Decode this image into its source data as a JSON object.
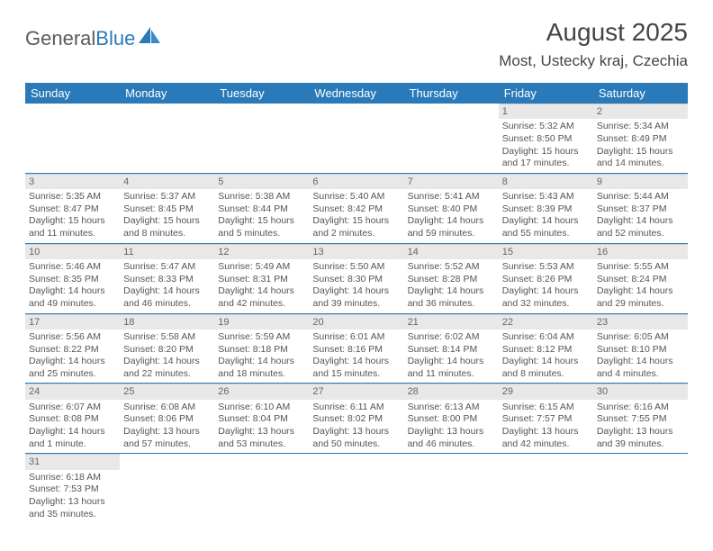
{
  "logo": {
    "text1": "General",
    "text2": "Blue"
  },
  "title": "August 2025",
  "location": "Most, Ustecky kraj, Czechia",
  "colors": {
    "header_bg": "#2a7ab9",
    "header_text": "#ffffff",
    "cell_text": "#555555",
    "daynum_bg": "#e8e8e8",
    "row_border": "#2a7ab9"
  },
  "weekdays": [
    "Sunday",
    "Monday",
    "Tuesday",
    "Wednesday",
    "Thursday",
    "Friday",
    "Saturday"
  ],
  "weeks": [
    [
      null,
      null,
      null,
      null,
      null,
      {
        "n": "1",
        "sr": "Sunrise: 5:32 AM",
        "ss": "Sunset: 8:50 PM",
        "dl": "Daylight: 15 hours and 17 minutes."
      },
      {
        "n": "2",
        "sr": "Sunrise: 5:34 AM",
        "ss": "Sunset: 8:49 PM",
        "dl": "Daylight: 15 hours and 14 minutes."
      }
    ],
    [
      {
        "n": "3",
        "sr": "Sunrise: 5:35 AM",
        "ss": "Sunset: 8:47 PM",
        "dl": "Daylight: 15 hours and 11 minutes."
      },
      {
        "n": "4",
        "sr": "Sunrise: 5:37 AM",
        "ss": "Sunset: 8:45 PM",
        "dl": "Daylight: 15 hours and 8 minutes."
      },
      {
        "n": "5",
        "sr": "Sunrise: 5:38 AM",
        "ss": "Sunset: 8:44 PM",
        "dl": "Daylight: 15 hours and 5 minutes."
      },
      {
        "n": "6",
        "sr": "Sunrise: 5:40 AM",
        "ss": "Sunset: 8:42 PM",
        "dl": "Daylight: 15 hours and 2 minutes."
      },
      {
        "n": "7",
        "sr": "Sunrise: 5:41 AM",
        "ss": "Sunset: 8:40 PM",
        "dl": "Daylight: 14 hours and 59 minutes."
      },
      {
        "n": "8",
        "sr": "Sunrise: 5:43 AM",
        "ss": "Sunset: 8:39 PM",
        "dl": "Daylight: 14 hours and 55 minutes."
      },
      {
        "n": "9",
        "sr": "Sunrise: 5:44 AM",
        "ss": "Sunset: 8:37 PM",
        "dl": "Daylight: 14 hours and 52 minutes."
      }
    ],
    [
      {
        "n": "10",
        "sr": "Sunrise: 5:46 AM",
        "ss": "Sunset: 8:35 PM",
        "dl": "Daylight: 14 hours and 49 minutes."
      },
      {
        "n": "11",
        "sr": "Sunrise: 5:47 AM",
        "ss": "Sunset: 8:33 PM",
        "dl": "Daylight: 14 hours and 46 minutes."
      },
      {
        "n": "12",
        "sr": "Sunrise: 5:49 AM",
        "ss": "Sunset: 8:31 PM",
        "dl": "Daylight: 14 hours and 42 minutes."
      },
      {
        "n": "13",
        "sr": "Sunrise: 5:50 AM",
        "ss": "Sunset: 8:30 PM",
        "dl": "Daylight: 14 hours and 39 minutes."
      },
      {
        "n": "14",
        "sr": "Sunrise: 5:52 AM",
        "ss": "Sunset: 8:28 PM",
        "dl": "Daylight: 14 hours and 36 minutes."
      },
      {
        "n": "15",
        "sr": "Sunrise: 5:53 AM",
        "ss": "Sunset: 8:26 PM",
        "dl": "Daylight: 14 hours and 32 minutes."
      },
      {
        "n": "16",
        "sr": "Sunrise: 5:55 AM",
        "ss": "Sunset: 8:24 PM",
        "dl": "Daylight: 14 hours and 29 minutes."
      }
    ],
    [
      {
        "n": "17",
        "sr": "Sunrise: 5:56 AM",
        "ss": "Sunset: 8:22 PM",
        "dl": "Daylight: 14 hours and 25 minutes."
      },
      {
        "n": "18",
        "sr": "Sunrise: 5:58 AM",
        "ss": "Sunset: 8:20 PM",
        "dl": "Daylight: 14 hours and 22 minutes."
      },
      {
        "n": "19",
        "sr": "Sunrise: 5:59 AM",
        "ss": "Sunset: 8:18 PM",
        "dl": "Daylight: 14 hours and 18 minutes."
      },
      {
        "n": "20",
        "sr": "Sunrise: 6:01 AM",
        "ss": "Sunset: 8:16 PM",
        "dl": "Daylight: 14 hours and 15 minutes."
      },
      {
        "n": "21",
        "sr": "Sunrise: 6:02 AM",
        "ss": "Sunset: 8:14 PM",
        "dl": "Daylight: 14 hours and 11 minutes."
      },
      {
        "n": "22",
        "sr": "Sunrise: 6:04 AM",
        "ss": "Sunset: 8:12 PM",
        "dl": "Daylight: 14 hours and 8 minutes."
      },
      {
        "n": "23",
        "sr": "Sunrise: 6:05 AM",
        "ss": "Sunset: 8:10 PM",
        "dl": "Daylight: 14 hours and 4 minutes."
      }
    ],
    [
      {
        "n": "24",
        "sr": "Sunrise: 6:07 AM",
        "ss": "Sunset: 8:08 PM",
        "dl": "Daylight: 14 hours and 1 minute."
      },
      {
        "n": "25",
        "sr": "Sunrise: 6:08 AM",
        "ss": "Sunset: 8:06 PM",
        "dl": "Daylight: 13 hours and 57 minutes."
      },
      {
        "n": "26",
        "sr": "Sunrise: 6:10 AM",
        "ss": "Sunset: 8:04 PM",
        "dl": "Daylight: 13 hours and 53 minutes."
      },
      {
        "n": "27",
        "sr": "Sunrise: 6:11 AM",
        "ss": "Sunset: 8:02 PM",
        "dl": "Daylight: 13 hours and 50 minutes."
      },
      {
        "n": "28",
        "sr": "Sunrise: 6:13 AM",
        "ss": "Sunset: 8:00 PM",
        "dl": "Daylight: 13 hours and 46 minutes."
      },
      {
        "n": "29",
        "sr": "Sunrise: 6:15 AM",
        "ss": "Sunset: 7:57 PM",
        "dl": "Daylight: 13 hours and 42 minutes."
      },
      {
        "n": "30",
        "sr": "Sunrise: 6:16 AM",
        "ss": "Sunset: 7:55 PM",
        "dl": "Daylight: 13 hours and 39 minutes."
      }
    ],
    [
      {
        "n": "31",
        "sr": "Sunrise: 6:18 AM",
        "ss": "Sunset: 7:53 PM",
        "dl": "Daylight: 13 hours and 35 minutes."
      },
      null,
      null,
      null,
      null,
      null,
      null
    ]
  ]
}
